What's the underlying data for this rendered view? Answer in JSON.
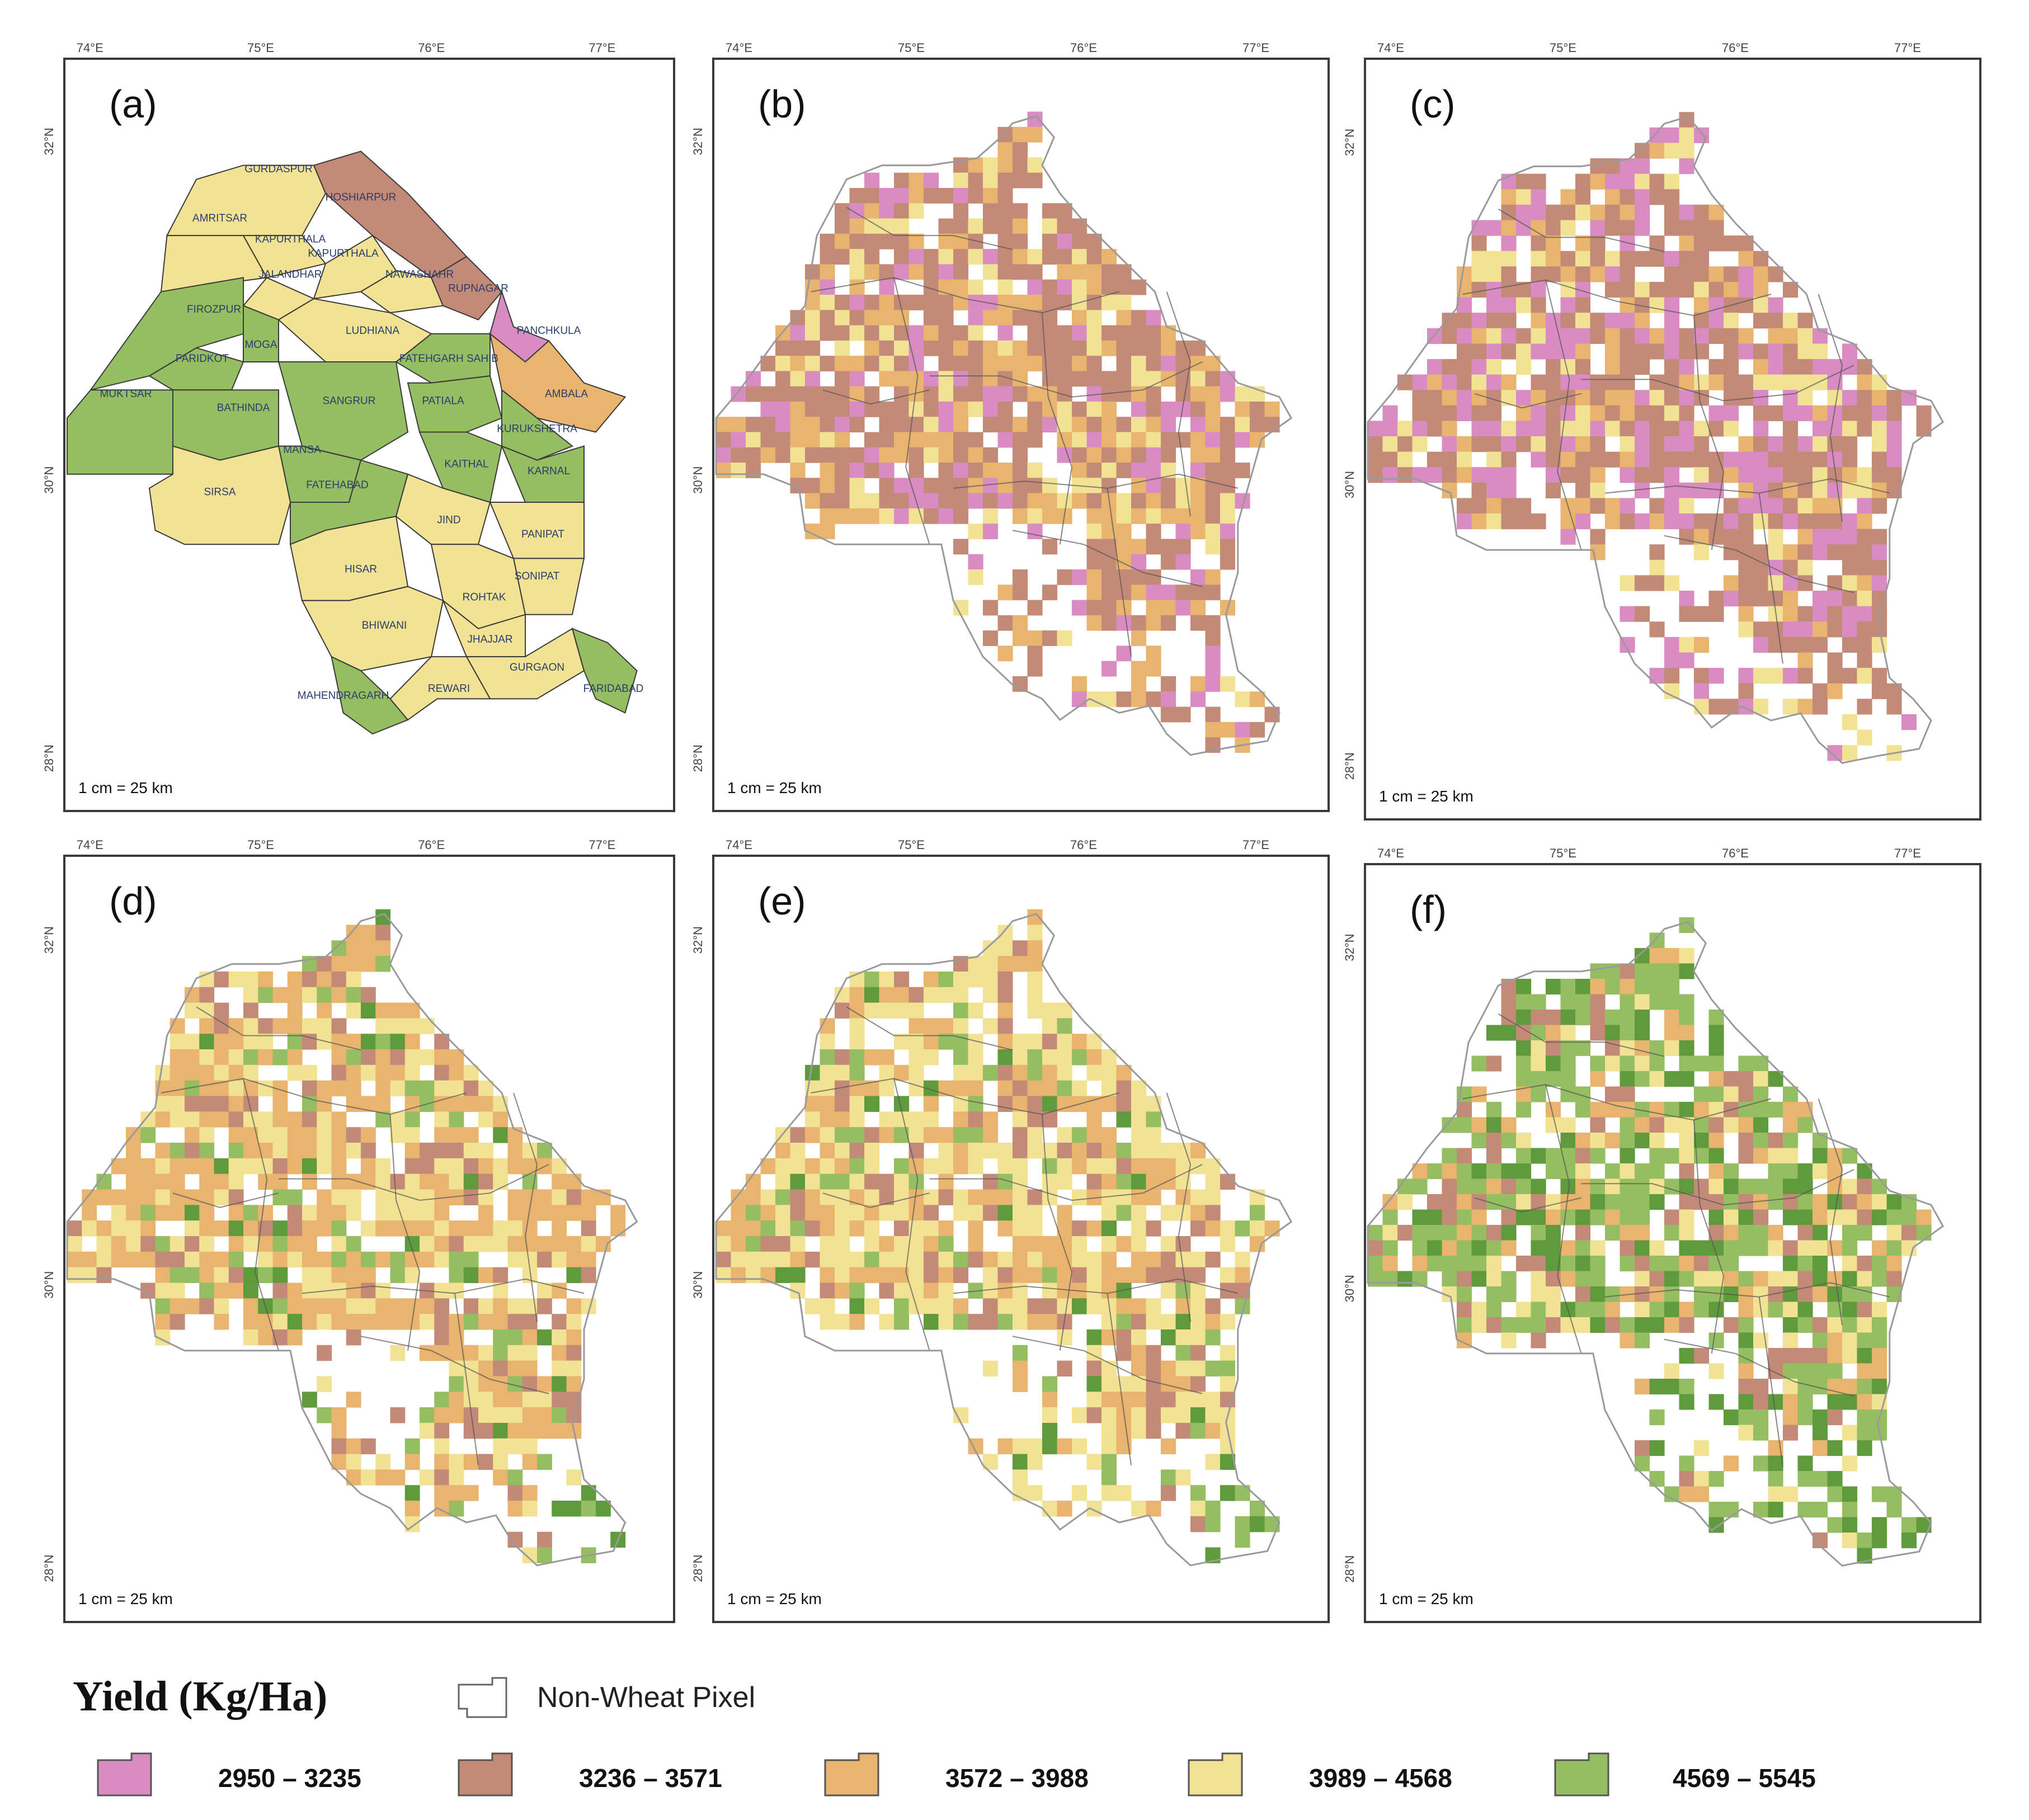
{
  "panels": [
    {
      "id": "a",
      "label": "(a)",
      "type": "district"
    },
    {
      "id": "b",
      "label": "(b)",
      "type": "grid",
      "palette": [
        0,
        1,
        1,
        1,
        2,
        2,
        3
      ]
    },
    {
      "id": "c",
      "label": "(c)",
      "type": "grid",
      "palette": [
        0,
        0,
        1,
        1,
        1,
        2,
        3
      ]
    },
    {
      "id": "d",
      "label": "(d)",
      "type": "grid",
      "palette": [
        1,
        2,
        2,
        2,
        3,
        3,
        4
      ]
    },
    {
      "id": "e",
      "label": "(e)",
      "type": "grid",
      "palette": [
        1,
        2,
        2,
        3,
        3,
        3,
        4
      ]
    },
    {
      "id": "f",
      "label": "(f)",
      "type": "grid",
      "palette": [
        1,
        2,
        3,
        4,
        4,
        4,
        4
      ]
    }
  ],
  "axes": {
    "longitude_ticks": [
      "74°E",
      "75°E",
      "76°E",
      "77°E"
    ],
    "latitude_ticks": [
      "32°N",
      "30°N",
      "28°N"
    ]
  },
  "scale_text": "1 cm = 25 km",
  "legend": {
    "title": "Yield (Kg/Ha)",
    "non_wheat_label": "Non-Wheat Pixel",
    "classes": [
      {
        "range": "2950 – 3235",
        "color": "#d88cc2"
      },
      {
        "range": "3236 – 3571",
        "color": "#c48a78"
      },
      {
        "range": "3572 – 3988",
        "color": "#e8b46e"
      },
      {
        "range": "3989 – 4568",
        "color": "#f2e394"
      },
      {
        "range": "4569 – 5545",
        "color": "#95bd62"
      }
    ],
    "dark_green": "#5f9a3c"
  },
  "districts": [
    {
      "name": "GURDASPUR",
      "class": 3
    },
    {
      "name": "AMRITSAR",
      "class": 3
    },
    {
      "name": "HOSHIARPUR",
      "class": 1
    },
    {
      "name": "KAPURTHALA",
      "class": 3
    },
    {
      "name": "KAPURTHALA",
      "class": 3
    },
    {
      "name": "JALANDHAR",
      "class": 3
    },
    {
      "name": "NAWASHAHR",
      "class": 3
    },
    {
      "name": "RUPNAGAR",
      "class": 1
    },
    {
      "name": "FIROZPUR",
      "class": 4
    },
    {
      "name": "LUDHIANA",
      "class": 3
    },
    {
      "name": "PANCHKULA",
      "class": 0
    },
    {
      "name": "MOGA",
      "class": 4
    },
    {
      "name": "FARIDKOT",
      "class": 4
    },
    {
      "name": "FATEHGARH SAHIB",
      "class": 4
    },
    {
      "name": "AMBALA",
      "class": 2
    },
    {
      "name": "MUKTSAR",
      "class": 4
    },
    {
      "name": "BATHINDA",
      "class": 4
    },
    {
      "name": "SANGRUR",
      "class": 4
    },
    {
      "name": "PATIALA",
      "class": 4
    },
    {
      "name": "KURUKSHETRA",
      "class": 4
    },
    {
      "name": "MANSA",
      "class": 4
    },
    {
      "name": "KAITHAL",
      "class": 4
    },
    {
      "name": "KARNAL",
      "class": 4
    },
    {
      "name": "SIRSA",
      "class": 3
    },
    {
      "name": "FATEHABAD",
      "class": 4
    },
    {
      "name": "JIND",
      "class": 3
    },
    {
      "name": "PANIPAT",
      "class": 3
    },
    {
      "name": "HISAR",
      "class": 3
    },
    {
      "name": "SONIPAT",
      "class": 3
    },
    {
      "name": "ROHTAK",
      "class": 3
    },
    {
      "name": "BHIWANI",
      "class": 3
    },
    {
      "name": "JHAJJAR",
      "class": 3
    },
    {
      "name": "GURGAON",
      "class": 3
    },
    {
      "name": "MAHENDRAGARH",
      "class": 4
    },
    {
      "name": "REWARI",
      "class": 3
    },
    {
      "name": "FARIDABAD",
      "class": 4
    }
  ]
}
